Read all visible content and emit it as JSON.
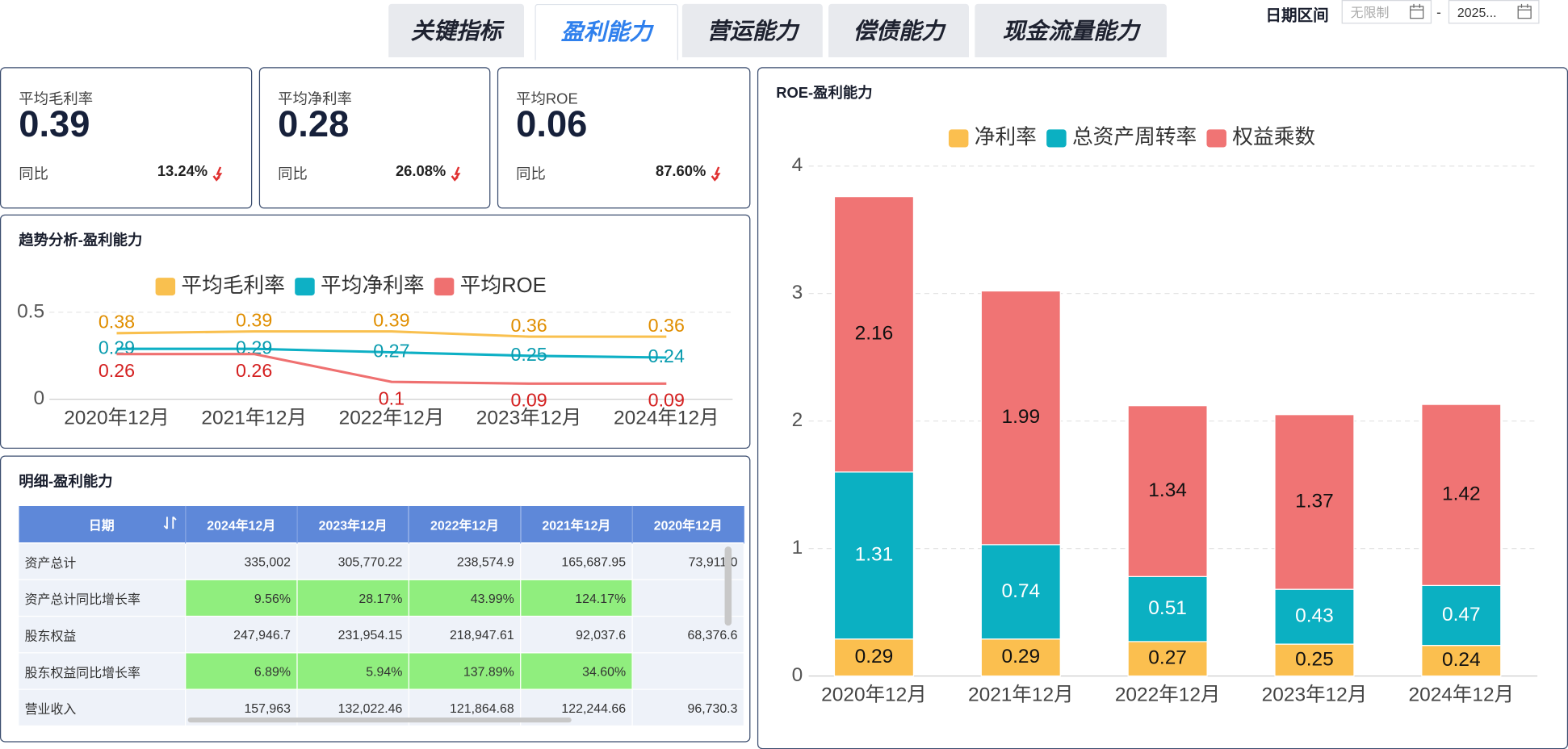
{
  "tabs": [
    "关键指标",
    "盈利能力",
    "营运能力",
    "偿债能力",
    "现金流量能力"
  ],
  "date_range": {
    "label": "日期区间",
    "start": "无限制",
    "separator": "-",
    "end": "2025..."
  },
  "kpis": [
    {
      "label": "平均毛利率",
      "value": "0.39",
      "yoy_label": "同比",
      "yoy": "13.24%"
    },
    {
      "label": "平均净利率",
      "value": "0.28",
      "yoy_label": "同比",
      "yoy": "26.08%"
    },
    {
      "label": "平均ROE",
      "value": "0.06",
      "yoy_label": "同比",
      "yoy": "87.60%"
    }
  ],
  "chart_data": [
    {
      "type": "line",
      "title": "趋势分析-盈利能力",
      "categories": [
        "2020年12月",
        "2021年12月",
        "2022年12月",
        "2023年12月",
        "2024年12月"
      ],
      "series": [
        {
          "name": "平均毛利率",
          "color": "#f9c04f",
          "label_color": "#e08e00",
          "values": [
            0.38,
            0.39,
            0.39,
            0.36,
            0.36
          ]
        },
        {
          "name": "平均净利率",
          "color": "#0eb0c5",
          "label_color": "#0a9caf",
          "values": [
            0.29,
            0.29,
            0.27,
            0.25,
            0.24
          ]
        },
        {
          "name": "平均ROE",
          "color": "#ef7070",
          "label_color": "#d42020",
          "values": [
            0.26,
            0.26,
            0.1,
            0.09,
            0.09
          ]
        }
      ],
      "ylim": [
        0,
        0.5
      ],
      "yticks": [
        0,
        0.5
      ],
      "grid": true
    },
    {
      "type": "stacked_bar",
      "title": "ROE-盈利能力",
      "categories": [
        "2020年12月",
        "2021年12月",
        "2022年12月",
        "2023年12月",
        "2024年12月"
      ],
      "series": [
        {
          "name": "净利率",
          "color": "#fbbf4f",
          "values": [
            0.29,
            0.29,
            0.27,
            0.25,
            0.24
          ]
        },
        {
          "name": "总资产周转率",
          "color": "#0bb0c2",
          "values": [
            1.31,
            0.74,
            0.51,
            0.43,
            0.47
          ]
        },
        {
          "name": "权益乘数",
          "color": "#f07474",
          "values": [
            2.16,
            1.99,
            1.34,
            1.37,
            1.42
          ]
        }
      ],
      "ylim": [
        0,
        4
      ],
      "yticks": [
        0,
        1,
        2,
        3,
        4
      ],
      "grid": true
    }
  ],
  "table": {
    "title": "明细-盈利能力",
    "header": [
      "日期",
      "2024年12月",
      "2023年12月",
      "2022年12月",
      "2021年12月",
      "2020年12月"
    ],
    "rows": [
      [
        "资产总计",
        "335,002",
        "305,770.22",
        "238,574.9",
        "165,687.95",
        "73,911.0"
      ],
      [
        "资产总计同比增长率",
        "9.56%",
        "28.17%",
        "43.99%",
        "124.17%",
        null
      ],
      [
        "股东权益",
        "247,946.7",
        "231,954.15",
        "218,947.61",
        "92,037.6",
        "68,376.6"
      ],
      [
        "股东权益同比增长率",
        "6.89%",
        "5.94%",
        "137.89%",
        "34.60%",
        null
      ],
      [
        "营业收入",
        "157,963",
        "132,022.46",
        "121,864.68",
        "122,244.66",
        "96,730.3"
      ]
    ]
  }
}
